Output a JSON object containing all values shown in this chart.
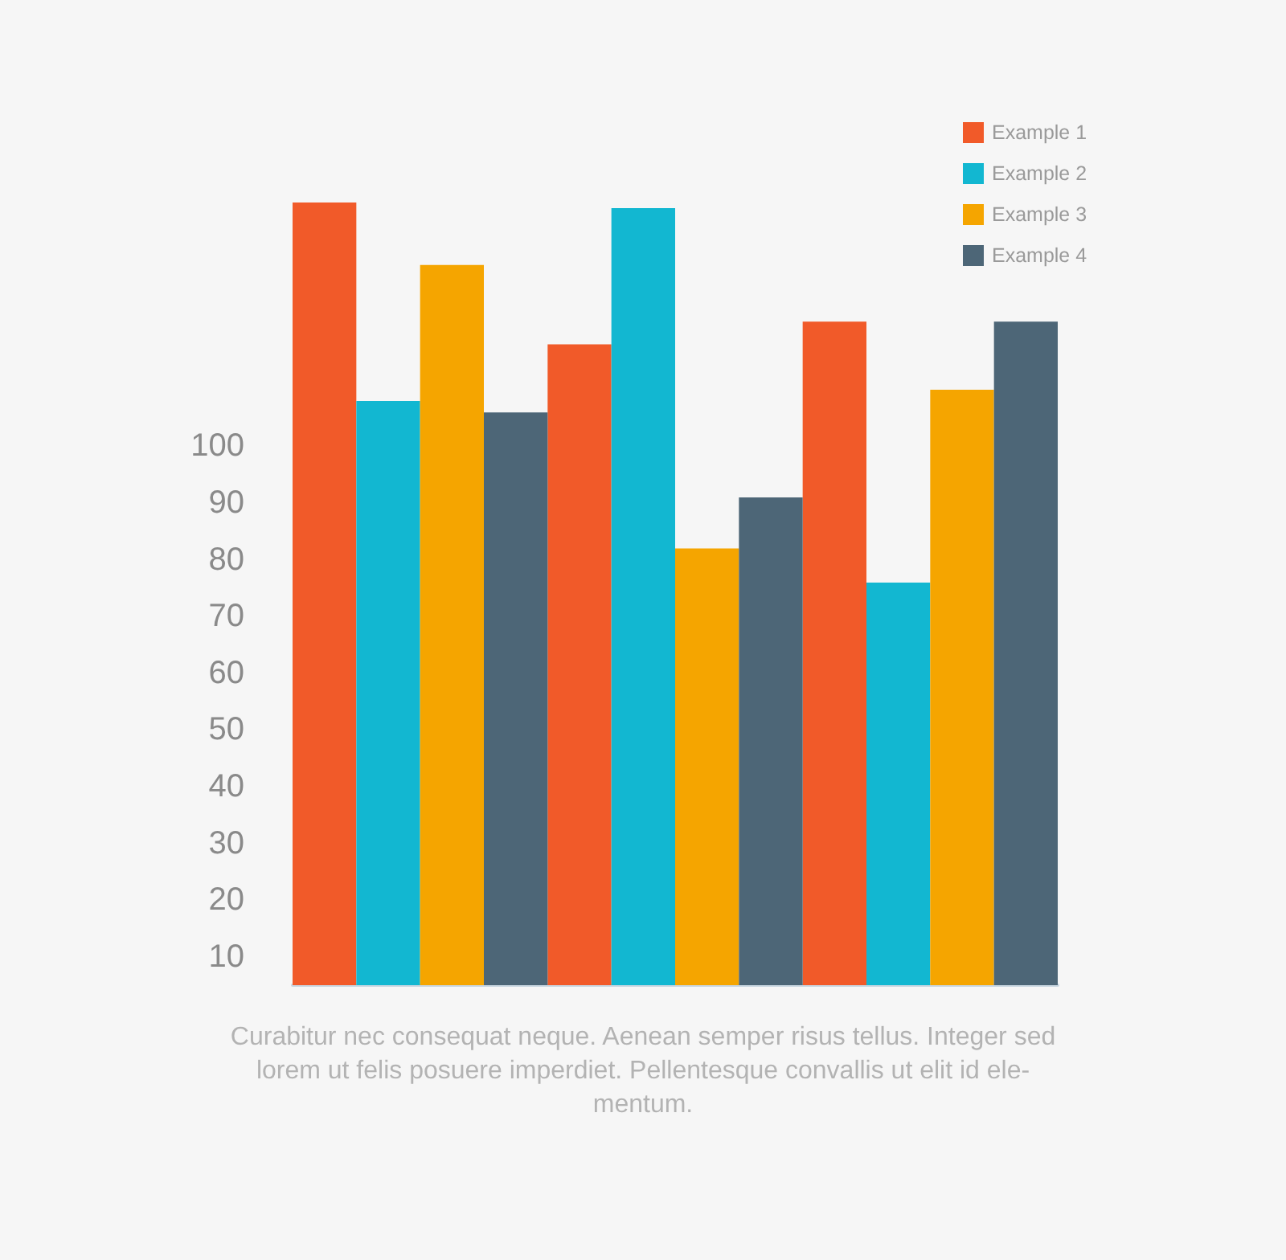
{
  "chart_data": {
    "type": "bar",
    "categories": [
      null,
      null,
      null
    ],
    "series": [
      {
        "name": "Example 1",
        "color": "#f15a29",
        "values": [
          143,
          118,
          122
        ]
      },
      {
        "name": "Example 2",
        "color": "#12b7d1",
        "values": [
          108,
          142,
          76
        ]
      },
      {
        "name": "Example 3",
        "color": "#f5a500",
        "values": [
          132,
          82,
          110
        ]
      },
      {
        "name": "Example 4",
        "color": "#4d6677",
        "values": [
          106,
          91,
          122
        ]
      }
    ],
    "ylim": [
      5,
      143
    ],
    "yticks": [
      10,
      20,
      30,
      40,
      50,
      60,
      70,
      80,
      90,
      100
    ],
    "legend": "top right",
    "annotations": [
      "Curabitur nec consequat neque. Aenean semper risus tellus. Integer sed\nlorem ut felis posuere imperdiet. Pellentesque convallis ut elit id ele-\nmentum."
    ]
  }
}
